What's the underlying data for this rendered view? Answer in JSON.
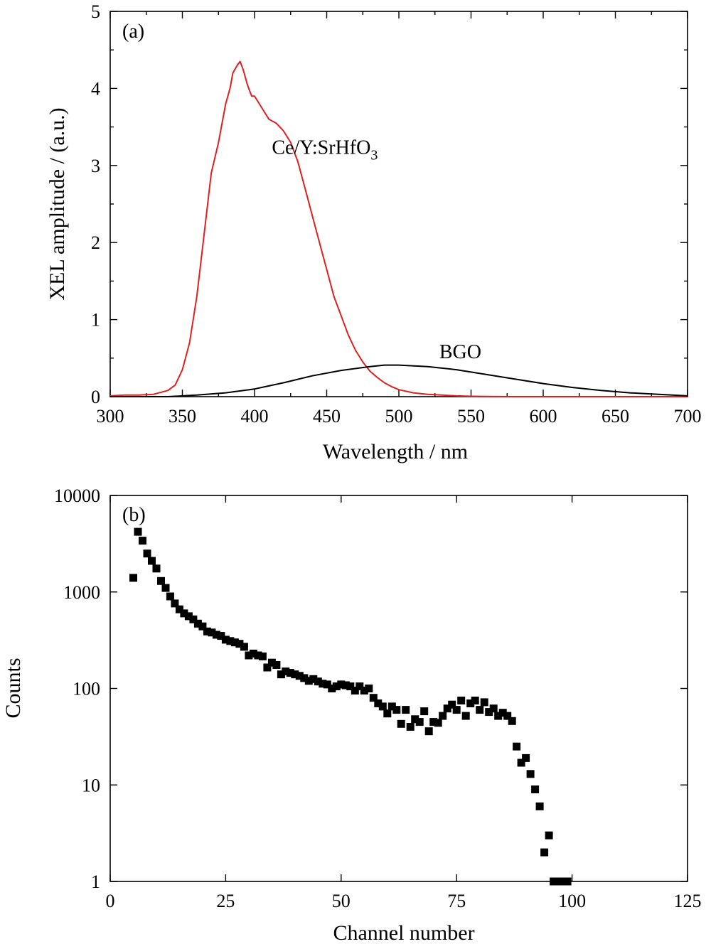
{
  "chart_data": [
    {
      "type": "line",
      "panel_label": "(a)",
      "xlabel": "Wavelength / nm",
      "ylabel": "XEL amplitude / (a.u.)",
      "xlim": [
        300,
        700
      ],
      "ylim": [
        0,
        5
      ],
      "xticks": [
        300,
        350,
        400,
        450,
        500,
        550,
        600,
        650,
        700
      ],
      "yticks": [
        0,
        1,
        2,
        3,
        4,
        5
      ],
      "grid": false,
      "series": [
        {
          "name": "Ce/Y:SrHfO",
          "name_subscript": "3",
          "color": "#e02020",
          "x": [
            300,
            310,
            320,
            330,
            340,
            345,
            350,
            355,
            360,
            365,
            370,
            375,
            380,
            383,
            385,
            388,
            390,
            392,
            395,
            398,
            400,
            405,
            410,
            415,
            420,
            425,
            430,
            435,
            440,
            445,
            450,
            455,
            460,
            465,
            470,
            475,
            480,
            485,
            490,
            495,
            500,
            510,
            520,
            530,
            540,
            550,
            560,
            580,
            600,
            650,
            700
          ],
          "y": [
            0.01,
            0.02,
            0.02,
            0.03,
            0.08,
            0.15,
            0.35,
            0.7,
            1.3,
            2.1,
            2.9,
            3.3,
            3.8,
            4.0,
            4.2,
            4.3,
            4.35,
            4.25,
            4.05,
            3.9,
            3.9,
            3.75,
            3.6,
            3.55,
            3.45,
            3.3,
            3.05,
            2.7,
            2.35,
            2.0,
            1.65,
            1.3,
            1.05,
            0.8,
            0.6,
            0.45,
            0.33,
            0.25,
            0.18,
            0.13,
            0.09,
            0.05,
            0.03,
            0.02,
            0.01,
            0.005,
            0.003,
            0.0,
            0.0,
            0.0,
            0.0
          ]
        },
        {
          "name": "BGO",
          "color": "#000000",
          "x": [
            300,
            320,
            340,
            360,
            380,
            400,
            420,
            440,
            460,
            480,
            490,
            500,
            520,
            540,
            560,
            580,
            600,
            620,
            640,
            660,
            680,
            700
          ],
          "y": [
            0.0,
            0.0,
            0.0,
            0.02,
            0.05,
            0.1,
            0.18,
            0.27,
            0.34,
            0.39,
            0.41,
            0.41,
            0.39,
            0.35,
            0.29,
            0.23,
            0.17,
            0.12,
            0.08,
            0.05,
            0.03,
            0.01
          ]
        }
      ]
    },
    {
      "type": "scatter",
      "panel_label": "(b)",
      "xlabel": "Channel number",
      "ylabel": "Counts",
      "xlim": [
        0,
        125
      ],
      "ylim": [
        1,
        10000
      ],
      "yscale": "log",
      "xticks": [
        0,
        25,
        50,
        75,
        100,
        125
      ],
      "yticks": [
        1,
        10,
        100,
        1000,
        10000
      ],
      "grid": false,
      "marker": "square",
      "color": "#000000",
      "x": [
        5,
        6,
        7,
        8,
        9,
        10,
        11,
        12,
        13,
        14,
        15,
        16,
        17,
        18,
        19,
        20,
        21,
        22,
        23,
        24,
        25,
        26,
        27,
        28,
        29,
        30,
        31,
        32,
        33,
        34,
        35,
        36,
        37,
        38,
        39,
        40,
        41,
        42,
        43,
        44,
        45,
        46,
        47,
        48,
        49,
        50,
        51,
        52,
        53,
        54,
        55,
        56,
        57,
        58,
        59,
        60,
        61,
        62,
        63,
        64,
        65,
        66,
        67,
        68,
        69,
        70,
        71,
        72,
        73,
        74,
        75,
        76,
        77,
        78,
        79,
        80,
        81,
        82,
        83,
        84,
        85,
        86,
        87,
        88,
        89,
        90,
        91,
        92,
        93,
        94,
        95,
        96,
        97,
        98,
        99
      ],
      "y": [
        1400,
        4200,
        3400,
        2500,
        2100,
        1750,
        1300,
        1100,
        900,
        760,
        660,
        600,
        560,
        520,
        470,
        440,
        390,
        380,
        360,
        350,
        320,
        310,
        300,
        290,
        270,
        220,
        230,
        220,
        215,
        165,
        185,
        175,
        140,
        150,
        145,
        140,
        135,
        128,
        120,
        125,
        118,
        112,
        110,
        100,
        105,
        110,
        108,
        105,
        95,
        105,
        95,
        100,
        80,
        70,
        65,
        55,
        65,
        60,
        43,
        60,
        40,
        48,
        45,
        58,
        36,
        45,
        44,
        52,
        62,
        68,
        60,
        75,
        52,
        70,
        75,
        60,
        72,
        57,
        62,
        52,
        56,
        52,
        46,
        25,
        17,
        19,
        13,
        9,
        6,
        2,
        3,
        1,
        1,
        1,
        1
      ]
    }
  ]
}
